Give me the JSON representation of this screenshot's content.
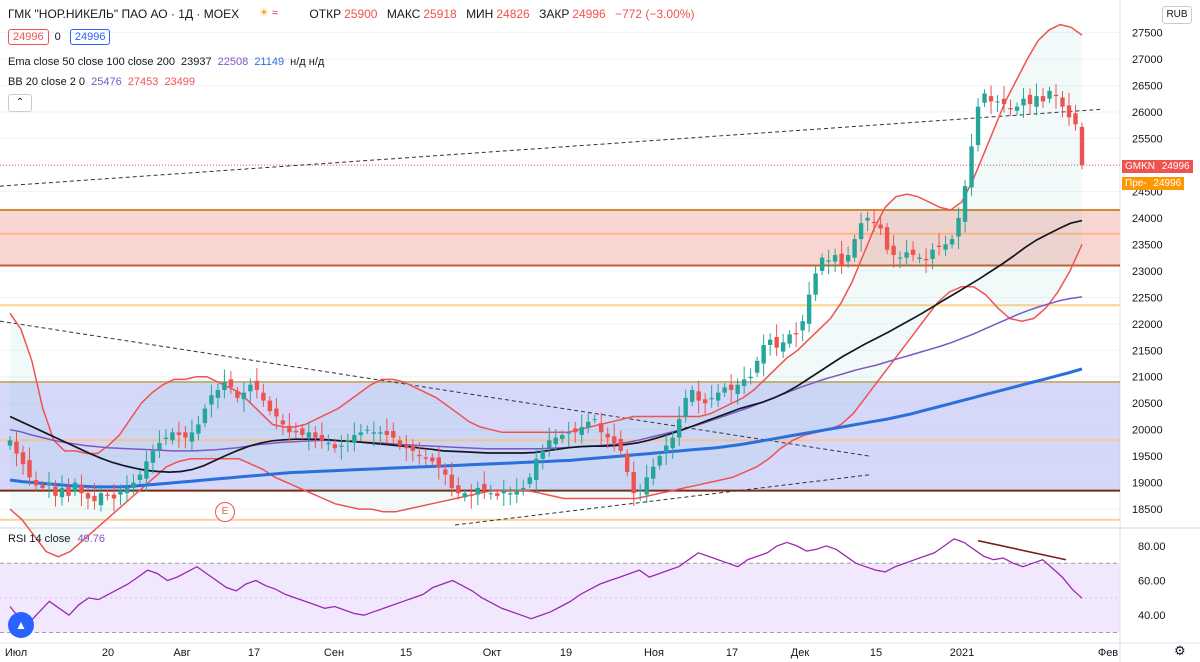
{
  "header": {
    "title": "ГМК \"НОР.НИКЕЛЬ\" ПАО АО · 1Д · MOEX",
    "ohlc": [
      {
        "label": "ОТКР",
        "value": "25900"
      },
      {
        "label": "МАКС",
        "value": "25918"
      },
      {
        "label": "МИН",
        "value": "24826"
      },
      {
        "label": "ЗАКР",
        "value": "24996"
      }
    ],
    "change": "−772 (−3.00%)",
    "currency": "RUB",
    "bid": "24996",
    "spread": "0",
    "ask": "24996",
    "collapse_icon": "chevron-up-icon"
  },
  "indicators": {
    "ema": {
      "label": "Ema close 50 close 100 close 200",
      "values": [
        "23937",
        "22508",
        "21149"
      ],
      "na": "н/д н/д"
    },
    "bb": {
      "label": "BB 20 close 2 0",
      "values": [
        "25476",
        "27453",
        "23499"
      ]
    },
    "rsi": {
      "label": "RSI 14 close",
      "value": "49.76"
    }
  },
  "price_tags": [
    {
      "label": "GMKN",
      "value": "24996",
      "color": "#ef5350"
    },
    {
      "label": "Пре-",
      "value": "24996",
      "color": "#ff9800"
    }
  ],
  "colors": {
    "up": "#26a69a",
    "down": "#ef5350",
    "ema50": "#131722",
    "ema100": "#7e57c2",
    "ema200": "#2a6fdb",
    "bb": "#ef5350"
  },
  "chart_data": {
    "type": "candlestick",
    "title": "ГМК \"НОР.НИКЕЛЬ\" ПАО АО · 1Д · MOEX",
    "x_ticks": [
      "Июл",
      "20",
      "Авг",
      "17",
      "Сен",
      "15",
      "Окт",
      "19",
      "Ноя",
      "17",
      "Дек",
      "15",
      "2021",
      "Фев"
    ],
    "y_ticks": [
      "27500",
      "27000",
      "26500",
      "26000",
      "25500",
      "25000",
      "24500",
      "24000",
      "23500",
      "23000",
      "22500",
      "22000",
      "21500",
      "21000",
      "20500",
      "20000",
      "19500",
      "19000",
      "18500"
    ],
    "ylim": [
      18200,
      27700
    ],
    "rsi_ticks": [
      "80.00",
      "60.00",
      "40.00"
    ],
    "rsi_ylim": [
      28,
      88
    ],
    "close_series": [
      19800,
      19550,
      19350,
      19100,
      18950,
      18900,
      19000,
      18750,
      18900,
      18750,
      19000,
      18800,
      18700,
      18650,
      18800,
      18750,
      18700,
      18850,
      18900,
      19000,
      19150,
      19400,
      19600,
      19750,
      19850,
      19950,
      19900,
      19850,
      19950,
      20100,
      20400,
      20650,
      20750,
      20900,
      20800,
      20600,
      20700,
      20850,
      20750,
      20550,
      20350,
      20250,
      20100,
      19950,
      19950,
      19900,
      19950,
      19850,
      19800,
      19750,
      19650,
      19700,
      19800,
      19900,
      19950,
      20000,
      19950,
      19950,
      19900,
      19850,
      19700,
      19650,
      19600,
      19500,
      19450,
      19400,
      19300,
      19150,
      18900,
      18800,
      18800,
      18750,
      18900,
      18850,
      18800,
      18750,
      18850,
      18800,
      18850,
      18900,
      19100,
      19450,
      19600,
      19800,
      19850,
      19900,
      19950,
      19950,
      20050,
      20150,
      20200,
      19950,
      19850,
      19750,
      19600,
      19200,
      18800,
      18850,
      19100,
      19300,
      19500,
      19700,
      19850,
      20200,
      20600,
      20750,
      20550,
      20500,
      20600,
      20700,
      20800,
      20750,
      20850,
      20950,
      21000,
      21300,
      21600,
      21700,
      21550,
      21650,
      21800,
      21800,
      22050,
      22550,
      22950,
      23250,
      23200,
      23300,
      23100,
      23300,
      23600,
      23900,
      24000,
      23900,
      23800,
      23400,
      23300,
      23250,
      23350,
      23300,
      23250,
      23200,
      23400,
      23450,
      23500,
      23600,
      24000,
      24600,
      25350,
      26100,
      26350,
      26200,
      26200,
      26150,
      26050,
      26100,
      26250,
      26150,
      26300,
      26200,
      26400,
      26300,
      26100,
      25900,
      25768,
      24996
    ],
    "ema50": [
      20250,
      20150,
      20050,
      19950,
      19850,
      19750,
      19650,
      19550,
      19460,
      19380,
      19320,
      19270,
      19230,
      19210,
      19200,
      19210,
      19250,
      19320,
      19420,
      19520,
      19610,
      19690,
      19750,
      19790,
      19810,
      19820,
      19820,
      19820,
      19810,
      19790,
      19780,
      19760,
      19740,
      19720,
      19700,
      19680,
      19650,
      19630,
      19600,
      19590,
      19580,
      19570,
      19560,
      19560,
      19560,
      19560,
      19570,
      19600,
      19630,
      19660,
      19680,
      19690,
      19690,
      19700,
      19720,
      19750,
      19800,
      19860,
      19930,
      20000,
      20080,
      20160,
      20240,
      20320,
      20400,
      20460,
      20520,
      20600,
      20700,
      20820,
      20960,
      21100,
      21240,
      21380,
      21500,
      21620,
      21730,
      21840,
      21960,
      22080,
      22200,
      22330,
      22460,
      22590,
      22720,
      22850,
      22990,
      23130,
      23280,
      23440,
      23580,
      23690,
      23800,
      23900,
      23950
    ],
    "ema100": [
      20000,
      19960,
      19900,
      19850,
      19800,
      19760,
      19730,
      19700,
      19680,
      19660,
      19650,
      19640,
      19630,
      19620,
      19610,
      19600,
      19600,
      19600,
      19610,
      19620,
      19640,
      19660,
      19690,
      19720,
      19740,
      19760,
      19770,
      19780,
      19790,
      19800,
      19790,
      19780,
      19770,
      19760,
      19750,
      19740,
      19720,
      19710,
      19700,
      19690,
      19680,
      19670,
      19660,
      19650,
      19640,
      19640,
      19640,
      19640,
      19640,
      19640,
      19650,
      19660,
      19670,
      19680,
      19690,
      19710,
      19730,
      19760,
      19800,
      19850,
      19900,
      19950,
      20000,
      20060,
      20120,
      20190,
      20260,
      20330,
      20400,
      20480,
      20560,
      20640,
      20720,
      20800,
      20870,
      20940,
      21000,
      21060,
      21120,
      21170,
      21220,
      21280,
      21340,
      21400,
      21460,
      21520,
      21580,
      21650,
      21730,
      21810,
      21900,
      21990,
      22080,
      22170,
      22250,
      22320,
      22380,
      22440,
      22480,
      22508
    ],
    "ema200": [
      19050,
      19020,
      19000,
      18980,
      18960,
      18940,
      18930,
      18920,
      18920,
      18920,
      18930,
      18950,
      18970,
      18990,
      19010,
      19030,
      19050,
      19070,
      19090,
      19110,
      19130,
      19150,
      19170,
      19190,
      19200,
      19210,
      19220,
      19230,
      19240,
      19250,
      19260,
      19270,
      19280,
      19290,
      19300,
      19310,
      19320,
      19330,
      19340,
      19350,
      19360,
      19370,
      19380,
      19390,
      19400,
      19410,
      19420,
      19440,
      19460,
      19480,
      19500,
      19520,
      19540,
      19560,
      19580,
      19600,
      19620,
      19640,
      19660,
      19690,
      19720,
      19760,
      19800,
      19840,
      19880,
      19920,
      19960,
      20000,
      20040,
      20080,
      20120,
      20160,
      20200,
      20250,
      20300,
      20360,
      20420,
      20480,
      20540,
      20600,
      20660,
      20720,
      20780,
      20840,
      20900,
      20960,
      21020,
      21080,
      21149
    ],
    "bb_upper": [
      22200,
      21900,
      21300,
      20400,
      19800,
      19600,
      19600,
      19550,
      19550,
      19700,
      19900,
      20200,
      20500,
      20700,
      20850,
      20950,
      20950,
      21000,
      21000,
      20900,
      20800,
      20700,
      20500,
      20300,
      20100,
      20050,
      20050,
      20100,
      20200,
      20300,
      20400,
      20550,
      20700,
      20850,
      20950,
      20950,
      20900,
      20800,
      20700,
      20600,
      20450,
      20300,
      20150,
      20050,
      20000,
      19950,
      19950,
      19950,
      19950,
      19950,
      19950,
      19950,
      20000,
      20050,
      20100,
      20150,
      20200,
      20250,
      20250,
      20250,
      20250,
      20250,
      20250,
      20250,
      20300,
      20400,
      20500,
      20600,
      20750,
      20950,
      21150,
      21350,
      21500,
      21700,
      21900,
      22100,
      22400,
      22800,
      23300,
      23800,
      24200,
      24400,
      24450,
      24400,
      24300,
      24200,
      24150,
      24300,
      24700,
      25200,
      25700,
      26200,
      26600,
      27000,
      27350,
      27550,
      27650,
      27600,
      27453
    ],
    "bb_lower": [
      18500,
      18300,
      18000,
      17700,
      17600,
      17700,
      17900,
      18100,
      18300,
      18500,
      18700,
      18900,
      19100,
      19300,
      19400,
      19450,
      19450,
      19450,
      19450,
      19450,
      19350,
      19250,
      19100,
      19000,
      18900,
      18800,
      18700,
      18600,
      18550,
      18500,
      18500,
      18450,
      18450,
      18500,
      18550,
      18600,
      18650,
      18700,
      18750,
      18800,
      18850,
      18850,
      18850,
      18850,
      18800,
      18750,
      18700,
      18700,
      18700,
      18700,
      18700,
      18700,
      18700,
      18750,
      18800,
      18850,
      18900,
      18950,
      19000,
      19050,
      19100,
      19200,
      19300,
      19450,
      19650,
      19800,
      19900,
      19950,
      20000,
      20100,
      20300,
      20600,
      20900,
      21200,
      21500,
      21800,
      22100,
      22400,
      22600,
      22700,
      22700,
      22550,
      22300,
      22100,
      22050,
      22100,
      22300,
      22600,
      23000,
      23499
    ],
    "rsi": [
      45,
      38,
      36,
      42,
      48,
      44,
      40,
      46,
      50,
      49,
      52,
      55,
      58,
      62,
      66,
      64,
      60,
      62,
      65,
      68,
      64,
      60,
      56,
      54,
      58,
      60,
      57,
      55,
      52,
      50,
      48,
      46,
      44,
      45,
      43,
      41,
      40,
      42,
      44,
      46,
      48,
      50,
      52,
      56,
      58,
      60,
      57,
      54,
      50,
      47,
      44,
      42,
      40,
      38,
      40,
      42,
      45,
      48,
      52,
      55,
      58,
      60,
      62,
      64,
      66,
      62,
      64,
      66,
      68,
      72,
      76,
      74,
      72,
      70,
      68,
      72,
      74,
      76,
      80,
      82,
      80,
      77,
      78,
      80,
      78,
      74,
      70,
      68,
      66,
      65,
      68,
      70,
      72,
      74,
      76,
      80,
      84,
      82,
      78,
      74,
      72,
      73,
      70,
      68,
      70,
      72,
      67,
      62,
      55,
      49.76
    ]
  }
}
